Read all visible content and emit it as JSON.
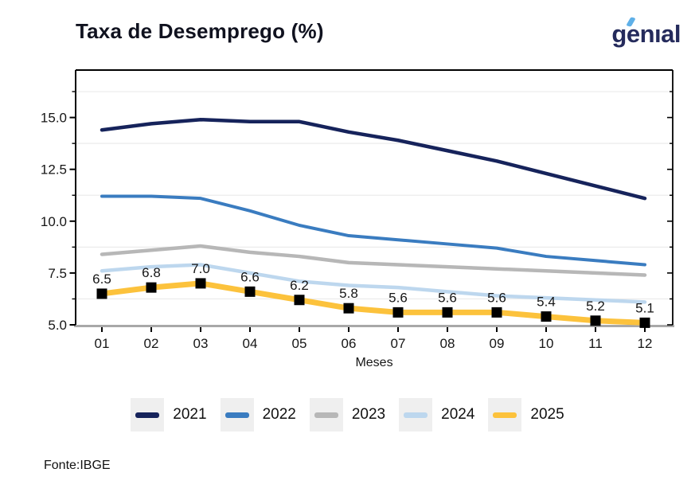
{
  "header": {
    "title": "Taxa de Desemprego (%)",
    "logo": {
      "text": "genıal",
      "color": "#252b5c",
      "accent_color": "#5fb0e8"
    }
  },
  "chart_data": {
    "type": "line",
    "title": "Taxa de Desemprego (%)",
    "xlabel": "Meses",
    "ylabel": "",
    "x_categories": [
      "01",
      "02",
      "03",
      "04",
      "05",
      "06",
      "07",
      "08",
      "09",
      "10",
      "11",
      "12"
    ],
    "ylim": [
      5.0,
      17.3
    ],
    "yticks": [
      5.0,
      7.5,
      10.0,
      12.5,
      15.0
    ],
    "minor_gridlines": [
      6.25,
      8.75,
      11.25,
      13.75,
      16.25
    ],
    "grid": "horizontal-minor",
    "legend_position": "bottom-center",
    "series": [
      {
        "name": "2021",
        "color": "#16235b",
        "line_width": 4.5,
        "values": [
          14.4,
          14.7,
          14.9,
          14.8,
          14.8,
          14.3,
          13.9,
          13.4,
          12.9,
          12.3,
          11.7,
          11.1
        ]
      },
      {
        "name": "2022",
        "color": "#3a7cc0",
        "line_width": 4,
        "values": [
          11.2,
          11.2,
          11.1,
          10.5,
          9.8,
          9.3,
          9.1,
          8.9,
          8.7,
          8.3,
          8.1,
          7.9
        ]
      },
      {
        "name": "2023",
        "color": "#b7b7b7",
        "line_width": 4.5,
        "values": [
          8.4,
          8.6,
          8.8,
          8.5,
          8.3,
          8.0,
          7.9,
          7.8,
          7.7,
          7.6,
          7.5,
          7.4
        ]
      },
      {
        "name": "2024",
        "color": "#bdd7ee",
        "line_width": 4.5,
        "values": [
          7.6,
          7.8,
          7.9,
          7.5,
          7.1,
          6.9,
          6.8,
          6.6,
          6.4,
          6.3,
          6.2,
          6.1
        ]
      },
      {
        "name": "2025",
        "color": "#fcc23c",
        "line_width": 7,
        "marker": "square",
        "marker_color": "#000000",
        "data_labels": true,
        "values": [
          6.5,
          6.8,
          7.0,
          6.6,
          6.2,
          5.8,
          5.6,
          5.6,
          5.6,
          5.4,
          5.2,
          5.1
        ]
      }
    ]
  },
  "footer": {
    "source": "Fonte:IBGE"
  }
}
